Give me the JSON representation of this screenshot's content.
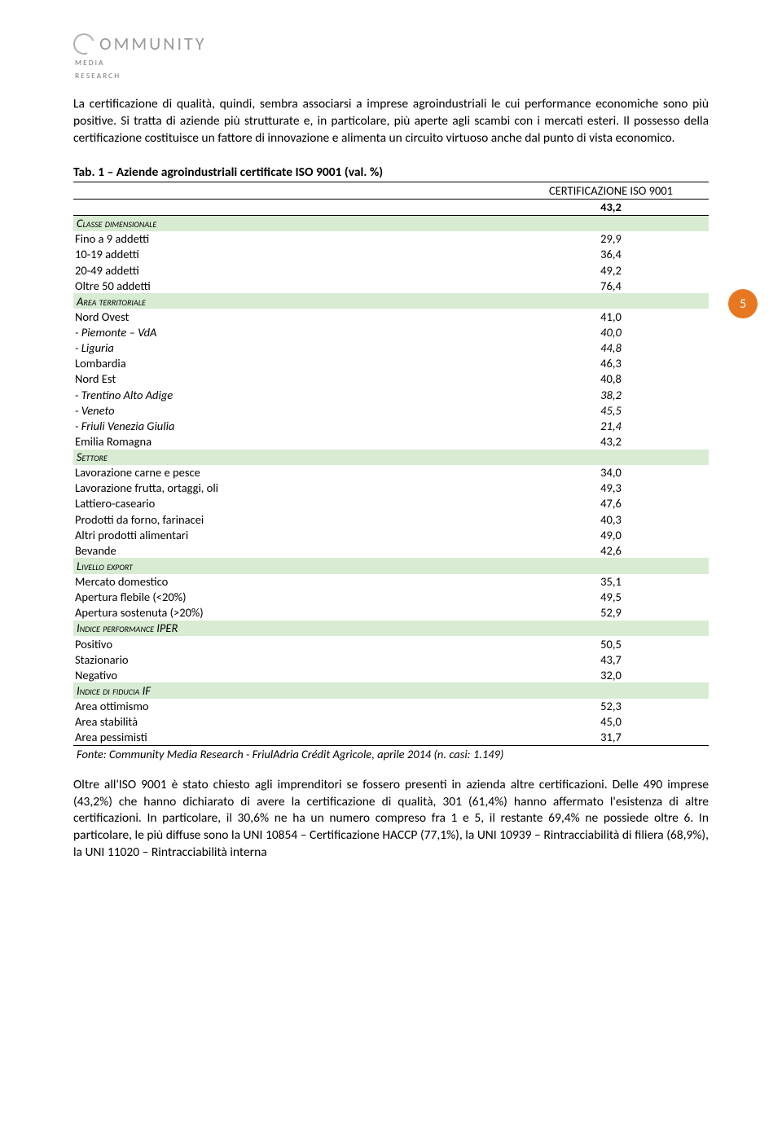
{
  "logo": {
    "main": "OMMUNITY",
    "sub1": "MEDIA",
    "sub2": "RESEARCH"
  },
  "intro": "La certificazione di qualità, quindi, sembra associarsi a imprese agroindustriali le cui performance economiche sono più positive. Si tratta di aziende più strutturate e, in particolare, più aperte agli scambi con i mercati esteri. Il possesso della certificazione costituisce un fattore di innovazione e alimenta un circuito virtuoso anche dal punto di vista economico.",
  "table_title": "Tab. 1 – Aziende agroindustriali certificate ISO 9001 (val. %)",
  "column_header": "CERTIFICAZIONE ISO 9001",
  "total_value": "43,2",
  "section_bg": "#d7ecd3",
  "sections": [
    {
      "label": "Classe dimensionale",
      "italic": false,
      "rows": [
        {
          "label": "Fino a 9 addetti",
          "value": "29,9"
        },
        {
          "label": "10-19 addetti",
          "value": "36,4"
        },
        {
          "label": "20-49 addetti",
          "value": "49,2"
        },
        {
          "label": "Oltre 50 addetti",
          "value": "76,4"
        }
      ]
    },
    {
      "label": "Area territoriale",
      "italic": true,
      "rows": [
        {
          "label": "Nord Ovest",
          "value": "41,0"
        },
        {
          "label": "- Piemonte – VdA",
          "value": "40,0",
          "italic": true
        },
        {
          "label": "- Liguria",
          "value": "44,8",
          "italic": true
        },
        {
          "label": "Lombardia",
          "value": "46,3"
        },
        {
          "label": "Nord Est",
          "value": "40,8"
        },
        {
          "label": "- Trentino Alto Adige",
          "value": "38,2",
          "italic": true
        },
        {
          "label": "- Veneto",
          "value": "45,5",
          "italic": true
        },
        {
          "label": "- Friuli Venezia Giulia",
          "value": "21,4",
          "italic": true
        },
        {
          "label": "Emilia Romagna",
          "value": "43,2"
        }
      ]
    },
    {
      "label": "Settore",
      "italic": false,
      "rows": [
        {
          "label": "Lavorazione carne e pesce",
          "value": "34,0"
        },
        {
          "label": "Lavorazione frutta, ortaggi, oli",
          "value": "49,3"
        },
        {
          "label": "Lattiero-caseario",
          "value": "47,6"
        },
        {
          "label": "Prodotti da forno, farinacei",
          "value": "40,3"
        },
        {
          "label": "Altri prodotti alimentari",
          "value": "49,0"
        },
        {
          "label": "Bevande",
          "value": "42,6"
        }
      ]
    },
    {
      "label": "Livello export",
      "italic": false,
      "rows": [
        {
          "label": "Mercato domestico",
          "value": "35,1"
        },
        {
          "label": "Apertura flebile (<20%)",
          "value": "49,5"
        },
        {
          "label": "Apertura sostenuta (>20%)",
          "value": "52,9"
        }
      ]
    },
    {
      "label": "Indice performance IPER",
      "italic": false,
      "rows": [
        {
          "label": "Positivo",
          "value": "50,5"
        },
        {
          "label": "Stazionario",
          "value": "43,7"
        },
        {
          "label": "Negativo",
          "value": "32,0"
        }
      ]
    },
    {
      "label": "Indice di fiducia IF",
      "italic": false,
      "rows": [
        {
          "label": "Area ottimismo",
          "value": "52,3"
        },
        {
          "label": "Area stabilità",
          "value": "45,0"
        },
        {
          "label": "Area pessimisti",
          "value": "31,7"
        }
      ]
    }
  ],
  "source": "Fonte: Community Media Research - FriulAdria Crédit Agricole, aprile 2014 (n. casi: 1.149)",
  "page_number": "5",
  "badge_color": "#e87722",
  "outro": "Oltre all'ISO 9001 è stato chiesto agli imprenditori se fossero presenti in azienda altre certificazioni. Delle 490 imprese (43,2%) che hanno dichiarato di avere la certificazione di qualità, 301 (61,4%) hanno affermato l'esistenza di altre certificazioni. In particolare, il 30,6% ne ha un numero compreso fra 1 e 5, il restante 69,4% ne possiede oltre 6. In particolare, le più diffuse sono la UNI 10854 – Certificazione HACCP (77,1%), la UNI 10939 – Rintracciabilità di filiera (68,9%), la UNI 11020 – Rintracciabilità interna"
}
